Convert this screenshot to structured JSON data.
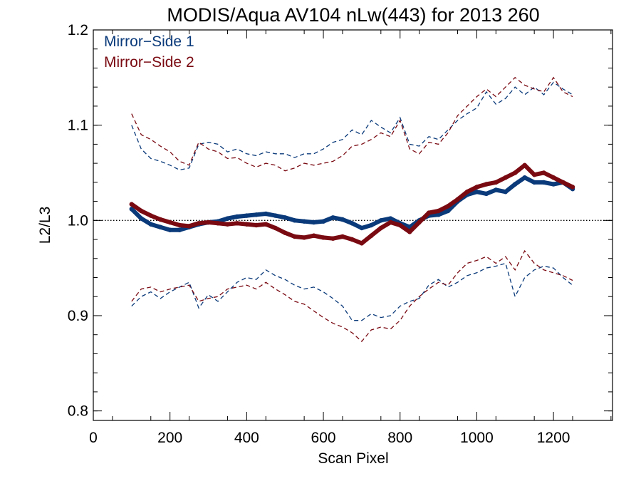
{
  "chart_data": {
    "type": "scatter",
    "title": "MODIS/Aqua AV104 nLw(443) for 2013 260",
    "xlabel": "Scan Pixel",
    "ylabel": "L2/L3",
    "xlim": [
      0,
      1354
    ],
    "ylim": [
      0.79,
      1.2
    ],
    "xticks": [
      0,
      200,
      400,
      600,
      800,
      1000,
      1200
    ],
    "xtick_labels": [
      "0",
      "200",
      "400",
      "600",
      "800",
      "1000",
      "1200"
    ],
    "yticks": [
      0.8,
      0.9,
      1.0,
      1.1,
      1.2
    ],
    "ytick_labels": [
      "0.8",
      "0.9",
      "1.0",
      "1.1",
      "1.2"
    ],
    "reference_line": 1.0,
    "legend_position": "top-left",
    "series": [
      {
        "name": "Mirror−Side 1",
        "color": "#0a3a7a",
        "x": [
          100,
          125,
          150,
          175,
          200,
          225,
          250,
          275,
          300,
          325,
          350,
          375,
          400,
          425,
          450,
          475,
          500,
          525,
          550,
          575,
          600,
          625,
          650,
          675,
          700,
          725,
          750,
          775,
          800,
          825,
          850,
          875,
          900,
          925,
          950,
          975,
          1000,
          1025,
          1050,
          1075,
          1100,
          1125,
          1150,
          1175,
          1200,
          1225,
          1250
        ],
        "mean": [
          1.012,
          1.002,
          0.996,
          0.993,
          0.99,
          0.99,
          0.993,
          0.996,
          0.998,
          0.999,
          1.002,
          1.004,
          1.005,
          1.006,
          1.007,
          1.005,
          1.003,
          1.0,
          0.999,
          0.998,
          0.999,
          1.003,
          1.001,
          0.997,
          0.992,
          0.995,
          1.0,
          1.002,
          0.997,
          0.993,
          1.0,
          1.005,
          1.006,
          1.01,
          1.02,
          1.027,
          1.03,
          1.028,
          1.032,
          1.03,
          1.038,
          1.045,
          1.04,
          1.04,
          1.038,
          1.04,
          1.033
        ],
        "upper": [
          1.1,
          1.075,
          1.065,
          1.062,
          1.058,
          1.053,
          1.055,
          1.08,
          1.082,
          1.08,
          1.072,
          1.075,
          1.07,
          1.068,
          1.072,
          1.07,
          1.07,
          1.066,
          1.07,
          1.07,
          1.075,
          1.082,
          1.085,
          1.095,
          1.09,
          1.105,
          1.098,
          1.092,
          1.108,
          1.08,
          1.078,
          1.088,
          1.085,
          1.095,
          1.105,
          1.112,
          1.118,
          1.135,
          1.122,
          1.128,
          1.14,
          1.132,
          1.14,
          1.132,
          1.145,
          1.138,
          1.132
        ],
        "lower": [
          0.91,
          0.92,
          0.925,
          0.918,
          0.925,
          0.93,
          0.935,
          0.908,
          0.922,
          0.915,
          0.925,
          0.935,
          0.94,
          0.938,
          0.948,
          0.942,
          0.938,
          0.932,
          0.928,
          0.93,
          0.925,
          0.918,
          0.91,
          0.895,
          0.895,
          0.902,
          0.898,
          0.9,
          0.91,
          0.915,
          0.918,
          0.932,
          0.938,
          0.93,
          0.935,
          0.942,
          0.945,
          0.95,
          0.952,
          0.955,
          0.92,
          0.94,
          0.948,
          0.952,
          0.95,
          0.94,
          0.932
        ]
      },
      {
        "name": "Mirror−Side 2",
        "color": "#7a0a12",
        "x": [
          100,
          125,
          150,
          175,
          200,
          225,
          250,
          275,
          300,
          325,
          350,
          375,
          400,
          425,
          450,
          475,
          500,
          525,
          550,
          575,
          600,
          625,
          650,
          675,
          700,
          725,
          750,
          775,
          800,
          825,
          850,
          875,
          900,
          925,
          950,
          975,
          1000,
          1025,
          1050,
          1075,
          1100,
          1125,
          1150,
          1175,
          1200,
          1225,
          1250
        ],
        "mean": [
          1.017,
          1.01,
          1.005,
          1.001,
          0.998,
          0.995,
          0.994,
          0.997,
          0.998,
          0.997,
          0.996,
          0.997,
          0.996,
          0.995,
          0.996,
          0.992,
          0.987,
          0.983,
          0.982,
          0.984,
          0.982,
          0.981,
          0.983,
          0.98,
          0.976,
          0.984,
          0.992,
          0.998,
          0.995,
          0.988,
          0.998,
          1.008,
          1.01,
          1.015,
          1.022,
          1.03,
          1.035,
          1.038,
          1.04,
          1.045,
          1.05,
          1.058,
          1.048,
          1.05,
          1.045,
          1.04,
          1.035
        ],
        "upper": [
          1.112,
          1.09,
          1.085,
          1.078,
          1.072,
          1.062,
          1.058,
          1.082,
          1.075,
          1.072,
          1.065,
          1.066,
          1.06,
          1.056,
          1.06,
          1.058,
          1.052,
          1.055,
          1.06,
          1.058,
          1.06,
          1.062,
          1.068,
          1.078,
          1.08,
          1.085,
          1.092,
          1.088,
          1.105,
          1.075,
          1.07,
          1.082,
          1.08,
          1.092,
          1.11,
          1.12,
          1.13,
          1.138,
          1.13,
          1.14,
          1.15,
          1.142,
          1.138,
          1.135,
          1.15,
          1.135,
          1.13
        ],
        "lower": [
          0.915,
          0.928,
          0.93,
          0.925,
          0.928,
          0.93,
          0.932,
          0.915,
          0.918,
          0.92,
          0.928,
          0.93,
          0.932,
          0.928,
          0.935,
          0.928,
          0.922,
          0.915,
          0.912,
          0.905,
          0.898,
          0.892,
          0.888,
          0.882,
          0.873,
          0.885,
          0.888,
          0.886,
          0.895,
          0.91,
          0.92,
          0.928,
          0.935,
          0.932,
          0.945,
          0.955,
          0.958,
          0.962,
          0.955,
          0.962,
          0.948,
          0.968,
          0.955,
          0.948,
          0.945,
          0.942,
          0.937
        ]
      }
    ]
  }
}
